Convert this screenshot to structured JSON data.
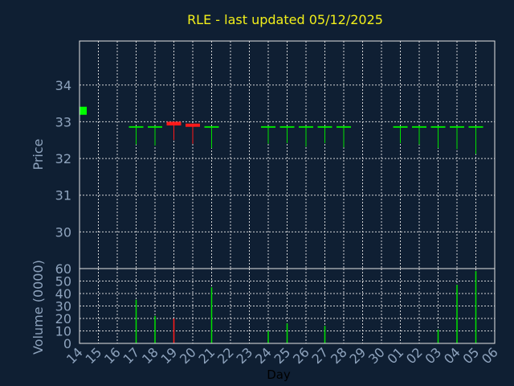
{
  "chart_data": [
    {
      "type": "candlestick",
      "title": "RLE - last updated 05/12/2025",
      "ylabel": "Price",
      "ylim": [
        29,
        35.2
      ],
      "yticks": [
        30,
        31,
        32,
        33,
        34
      ],
      "grid": true,
      "colors": {
        "up": "#00e000",
        "down": "#ff1a1a",
        "last": "#00ff00"
      },
      "candles": [
        {
          "day": "17",
          "open": 32.85,
          "high": 32.88,
          "low": 32.38,
          "close": 32.85,
          "direction": "up"
        },
        {
          "day": "18",
          "open": 32.85,
          "high": 32.88,
          "low": 32.35,
          "close": 32.85,
          "direction": "up"
        },
        {
          "day": "19",
          "open": 32.97,
          "high": 33.0,
          "low": 32.5,
          "close": 32.9,
          "direction": "down"
        },
        {
          "day": "20",
          "open": 32.92,
          "high": 32.95,
          "low": 32.4,
          "close": 32.9,
          "direction": "down"
        },
        {
          "day": "21",
          "open": 32.85,
          "high": 32.88,
          "low": 32.28,
          "close": 32.85,
          "direction": "up"
        },
        {
          "day": "24",
          "open": 32.85,
          "high": 32.88,
          "low": 32.4,
          "close": 32.85,
          "direction": "up"
        },
        {
          "day": "25",
          "open": 32.85,
          "high": 32.88,
          "low": 32.42,
          "close": 32.85,
          "direction": "up"
        },
        {
          "day": "26",
          "open": 32.85,
          "high": 32.88,
          "low": 32.32,
          "close": 32.85,
          "direction": "up"
        },
        {
          "day": "27",
          "open": 32.85,
          "high": 32.88,
          "low": 32.42,
          "close": 32.85,
          "direction": "up"
        },
        {
          "day": "28",
          "open": 32.85,
          "high": 32.88,
          "low": 32.3,
          "close": 32.85,
          "direction": "up"
        },
        {
          "day": "01",
          "open": 32.85,
          "high": 32.88,
          "low": 32.42,
          "close": 32.85,
          "direction": "up"
        },
        {
          "day": "02",
          "open": 32.85,
          "high": 32.88,
          "low": 32.38,
          "close": 32.85,
          "direction": "up"
        },
        {
          "day": "03",
          "open": 32.85,
          "high": 32.88,
          "low": 32.28,
          "close": 32.85,
          "direction": "up"
        },
        {
          "day": "04",
          "open": 32.85,
          "high": 32.88,
          "low": 32.25,
          "close": 32.85,
          "direction": "up"
        },
        {
          "day": "05",
          "open": 32.85,
          "high": 32.88,
          "low": 32.12,
          "close": 32.85,
          "direction": "up"
        }
      ],
      "last_price": 33.3
    },
    {
      "type": "bar",
      "ylabel": "Volume (0000)",
      "xlabel": "Day",
      "ylim": [
        0,
        60
      ],
      "yticks": [
        0,
        10,
        20,
        30,
        40,
        50,
        60
      ],
      "categories": [
        "14",
        "15",
        "16",
        "17",
        "18",
        "19",
        "20",
        "21",
        "22",
        "23",
        "24",
        "25",
        "26",
        "27",
        "28",
        "29",
        "30",
        "01",
        "02",
        "03",
        "04",
        "05",
        "06"
      ],
      "values": [
        0,
        0,
        0,
        35,
        22,
        20,
        0,
        45,
        0,
        0,
        10,
        16,
        0,
        14,
        0,
        0,
        0,
        0,
        0,
        11,
        47,
        58,
        0
      ],
      "directions": [
        "",
        "",
        "",
        "up",
        "up",
        "down",
        "",
        "up",
        "",
        "",
        "up",
        "up",
        "",
        "up",
        "",
        "",
        "",
        "",
        "",
        "up",
        "up",
        "up",
        ""
      ]
    }
  ]
}
